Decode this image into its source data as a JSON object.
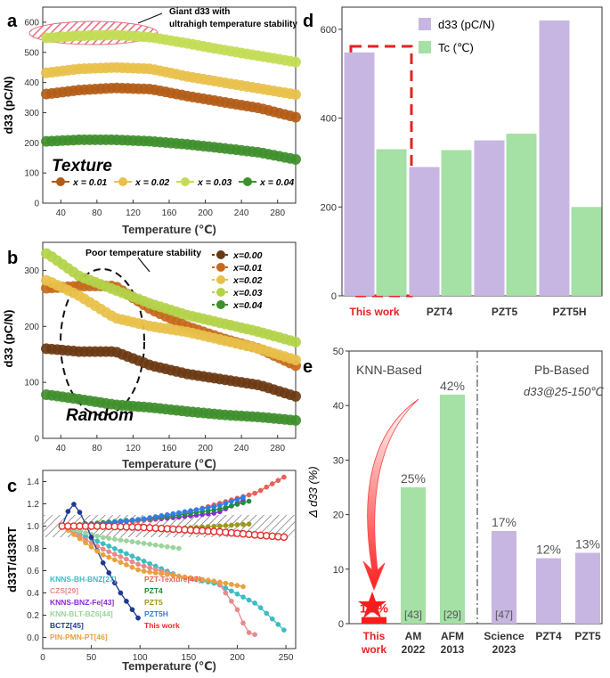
{
  "chart_data": [
    {
      "panel": "a",
      "type": "scatter",
      "xlabel": "Temperature (℃)",
      "ylabel": "d33 (pC/N)",
      "xlim": [
        20,
        300
      ],
      "ylim": [
        0,
        650
      ],
      "xticks": [
        "40",
        "80",
        "120",
        "160",
        "200",
        "240",
        "280"
      ],
      "yticks": [
        "0",
        "100",
        "200",
        "300",
        "400",
        "500",
        "600"
      ],
      "annotation_text": "Giant d33 with",
      "annotation_text2": "ultrahigh temperature stability",
      "inner_label": "Texture",
      "series": [
        {
          "name": "x = 0.01",
          "color": "#b35c17",
          "x": [
            25,
            60,
            100,
            140,
            180,
            220,
            260,
            300
          ],
          "values": [
            362,
            375,
            382,
            378,
            355,
            335,
            315,
            285
          ]
        },
        {
          "name": "x = 0.02",
          "color": "#e8c04a",
          "x": [
            25,
            60,
            100,
            140,
            180,
            220,
            260,
            300
          ],
          "values": [
            432,
            445,
            450,
            445,
            420,
            400,
            380,
            360
          ]
        },
        {
          "name": "x = 0.03",
          "color": "#c3dc55",
          "x": [
            25,
            60,
            100,
            140,
            180,
            220,
            260,
            300
          ],
          "values": [
            548,
            555,
            558,
            550,
            530,
            508,
            488,
            468
          ]
        },
        {
          "name": "x = 0.04",
          "color": "#3f8f2c",
          "x": [
            25,
            60,
            100,
            140,
            180,
            220,
            260,
            300
          ],
          "values": [
            205,
            210,
            210,
            205,
            195,
            182,
            168,
            145
          ]
        }
      ]
    },
    {
      "panel": "b",
      "type": "scatter",
      "xlabel": "Temperature (℃)",
      "ylabel": "d33 (pC/N)",
      "xlim": [
        20,
        300
      ],
      "ylim": [
        0,
        350
      ],
      "xticks": [
        "40",
        "80",
        "120",
        "160",
        "200",
        "240",
        "280"
      ],
      "yticks": [
        "0",
        "100",
        "200",
        "300"
      ],
      "annotation_text": "Poor temperature stability",
      "inner_label": "Random",
      "series": [
        {
          "name": "x=0.00",
          "color": "#6b3a12",
          "x": [
            25,
            60,
            100,
            140,
            180,
            220,
            260,
            300
          ],
          "values": [
            160,
            155,
            155,
            130,
            115,
            105,
            95,
            75
          ]
        },
        {
          "name": "x=0.01",
          "color": "#c56a1d",
          "x": [
            25,
            60,
            100,
            140,
            180,
            220,
            260,
            300
          ],
          "values": [
            268,
            272,
            272,
            230,
            200,
            178,
            160,
            130
          ]
        },
        {
          "name": "x=0.02",
          "color": "#e8c04a",
          "x": [
            25,
            60,
            100,
            140,
            180,
            220,
            260,
            300
          ],
          "values": [
            282,
            255,
            215,
            200,
            190,
            175,
            160,
            140
          ]
        },
        {
          "name": "x=0.03",
          "color": "#b3d24a",
          "x": [
            25,
            60,
            100,
            140,
            180,
            220,
            260,
            300
          ],
          "values": [
            330,
            290,
            265,
            240,
            220,
            205,
            190,
            172
          ]
        },
        {
          "name": "x=0.04",
          "color": "#3f8f2c",
          "x": [
            25,
            60,
            100,
            140,
            180,
            220,
            260,
            300
          ],
          "values": [
            78,
            70,
            60,
            55,
            48,
            42,
            38,
            32
          ]
        }
      ]
    },
    {
      "panel": "c",
      "type": "line",
      "xlabel": "Temperature (℃)",
      "ylabel": "d33T/d33RT",
      "xlim": [
        0,
        260
      ],
      "ylim": [
        -0.1,
        1.5
      ],
      "xticks": [
        "0",
        "50",
        "100",
        "150",
        "200",
        "250"
      ],
      "yticks": [
        "0.0",
        "0.2",
        "0.4",
        "0.6",
        "0.8",
        "1.0",
        "1.2",
        "1.4"
      ],
      "series": [
        {
          "name": "KNNS-BH-BNZ[27]",
          "color": "#3dbcc2",
          "x": [
            20,
            60,
            100,
            140,
            180,
            220,
            250
          ],
          "values": [
            1.0,
            0.85,
            0.7,
            0.55,
            0.48,
            0.3,
            0.05
          ]
        },
        {
          "name": "CZS[29]",
          "color": "#e88a8a",
          "x": [
            20,
            60,
            100,
            140,
            180,
            200,
            210,
            220
          ],
          "values": [
            1.0,
            0.8,
            0.65,
            0.55,
            0.5,
            0.25,
            0.05,
            0.02
          ]
        },
        {
          "name": "KNNS-BNZ-Fe[43]",
          "color": "#8a2dd1",
          "x": [
            20,
            60,
            100,
            140,
            180,
            210
          ],
          "values": [
            1.0,
            1.02,
            1.05,
            1.08,
            1.12,
            1.25
          ]
        },
        {
          "name": "KNN-BLT-BZ6[44]",
          "color": "#9cd49c",
          "x": [
            20,
            60,
            100,
            140
          ],
          "values": [
            1.0,
            0.9,
            0.85,
            0.8
          ]
        },
        {
          "name": "BCTZ[45]",
          "color": "#1f3a93",
          "x": [
            20,
            30,
            40,
            60,
            80,
            100
          ],
          "values": [
            1.0,
            1.22,
            1.1,
            0.7,
            0.4,
            0.15
          ]
        },
        {
          "name": "PIN-PMN-PT[46]",
          "color": "#e8a040",
          "x": [
            20,
            60,
            100,
            140,
            180,
            210
          ],
          "values": [
            1.0,
            0.75,
            0.6,
            0.55,
            0.5,
            0.45
          ]
        },
        {
          "name": "PZT-Texture[47]",
          "color": "#e8615a",
          "x": [
            20,
            60,
            100,
            140,
            180,
            220,
            250
          ],
          "values": [
            1.0,
            1.02,
            1.05,
            1.1,
            1.2,
            1.3,
            1.45
          ]
        },
        {
          "name": "PZT4",
          "color": "#1e8f3a",
          "x": [
            20,
            60,
            100,
            140,
            180,
            215
          ],
          "values": [
            1.0,
            1.03,
            1.06,
            1.1,
            1.15,
            1.23
          ]
        },
        {
          "name": "PZT5",
          "color": "#9a9a1a",
          "x": [
            20,
            60,
            100,
            140,
            180,
            215
          ],
          "values": [
            1.0,
            1.0,
            1.0,
            0.98,
            1.0,
            1.02
          ]
        },
        {
          "name": "PZT5H",
          "color": "#2f7ee8",
          "x": [
            20,
            60,
            100,
            140,
            180,
            210
          ],
          "values": [
            1.0,
            1.02,
            1.06,
            1.12,
            1.18,
            1.27
          ]
        },
        {
          "name": "This work",
          "color": "#e82a2a",
          "x": [
            20,
            60,
            100,
            140,
            180,
            220,
            250
          ],
          "values": [
            1.0,
            1.0,
            0.99,
            0.97,
            0.95,
            0.92,
            0.9
          ]
        }
      ]
    },
    {
      "panel": "d",
      "type": "bar",
      "categories": [
        "This work",
        "PZT4",
        "PZT5",
        "PZT5H"
      ],
      "series": [
        {
          "name": "d33 (pC/N)",
          "color": "#c8b6e2",
          "values": [
            548,
            290,
            350,
            620
          ]
        },
        {
          "name": "Tc (℃)",
          "color": "#a5e0a5",
          "values": [
            330,
            328,
            365,
            200
          ]
        }
      ],
      "ylim": [
        0,
        650
      ],
      "yticks": [
        "0",
        "200",
        "400",
        "600"
      ]
    },
    {
      "panel": "e",
      "type": "bar",
      "ylabel": "Δ d33 (%)",
      "ylim": [
        0,
        50
      ],
      "yticks": [
        "0",
        "10",
        "20",
        "30",
        "40",
        "50"
      ],
      "group_left": "KNN-Based",
      "group_right": "Pb-Based",
      "group_right_sub": "d33@25-150℃",
      "categories": [
        {
          "line1": "This",
          "line2": "work",
          "value": 1.2,
          "label": "1.2%",
          "ref": "",
          "color": "#ff1a1a"
        },
        {
          "line1": "AM",
          "line2": "2022",
          "value": 25,
          "label": "25%",
          "ref": "[43]",
          "color": "#a5e0a5"
        },
        {
          "line1": "AFM",
          "line2": "2013",
          "value": 42,
          "label": "42%",
          "ref": "[29]",
          "color": "#a5e0a5"
        },
        {
          "line1": "Science",
          "line2": "2023",
          "value": 17,
          "label": "17%",
          "ref": "[47]",
          "color": "#c8b6e2"
        },
        {
          "line1": "PZT4",
          "line2": "",
          "value": 12,
          "label": "12%",
          "ref": "",
          "color": "#c8b6e2"
        },
        {
          "line1": "PZT5",
          "line2": "",
          "value": 13,
          "label": "13%",
          "ref": "",
          "color": "#c8b6e2"
        }
      ]
    }
  ],
  "panel_labels": [
    "a",
    "b",
    "c",
    "d",
    "e"
  ]
}
